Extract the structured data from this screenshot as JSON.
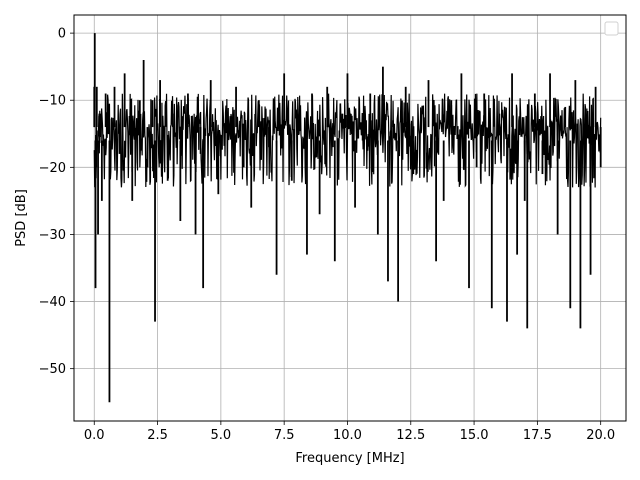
{
  "chart_data": {
    "type": "line",
    "title": "",
    "xlabel": "Frequency [MHz]",
    "ylabel": "PSD [dB]",
    "xlim": [
      -0.8,
      21.0
    ],
    "ylim": [
      -57.8,
      2.7
    ],
    "xticks": [
      0.0,
      2.5,
      5.0,
      7.5,
      10.0,
      12.5,
      15.0,
      17.5,
      20.0
    ],
    "xtick_labels": [
      "0.0",
      "2.5",
      "5.0",
      "7.5",
      "10.0",
      "12.5",
      "15.0",
      "17.5",
      "20.0"
    ],
    "yticks": [
      0,
      -10,
      -20,
      -30,
      -40,
      -50
    ],
    "ytick_labels": [
      "0",
      "−10",
      "−20",
      "−30",
      "−40",
      "−50"
    ],
    "grid": true,
    "legend": "upper-right (empty)",
    "series_color": "#000000",
    "series": [
      {
        "x": [
          0.0,
          0.02,
          0.05,
          0.08,
          0.1,
          0.15,
          0.2,
          0.3,
          0.45,
          0.55,
          0.6,
          0.8,
          1.0,
          1.2,
          1.5,
          1.8,
          1.95,
          2.1,
          2.3,
          2.4,
          2.6,
          2.9,
          3.1,
          3.4,
          3.7,
          4.0,
          4.2,
          4.3,
          4.6,
          4.9,
          5.2,
          5.6,
          5.9,
          6.2,
          6.5,
          6.9,
          7.2,
          7.5,
          7.8,
          8.1,
          8.4,
          8.6,
          8.9,
          9.2,
          9.5,
          9.8,
          10.0,
          10.3,
          10.6,
          10.9,
          11.2,
          11.4,
          11.6,
          11.8,
          12.0,
          12.3,
          12.6,
          12.9,
          13.2,
          13.5,
          13.8,
          14.1,
          14.5,
          14.8,
          15.1,
          15.4,
          15.7,
          16.0,
          16.3,
          16.5,
          16.7,
          17.0,
          17.1,
          17.4,
          17.7,
          18.0,
          18.3,
          18.6,
          18.8,
          19.0,
          19.2,
          19.4,
          19.6,
          19.8,
          20.0
        ],
        "y": [
          -8,
          0,
          -38,
          -20,
          -8,
          -30,
          -12,
          -25,
          -9,
          -15,
          -55,
          -8,
          -18,
          -6,
          -25,
          -10,
          -4,
          -20,
          -10,
          -43,
          -7,
          -22,
          -12,
          -28,
          -9,
          -30,
          -18,
          -38,
          -7,
          -24,
          -12,
          -8,
          -20,
          -26,
          -10,
          -17,
          -36,
          -6,
          -22,
          -14,
          -33,
          -9,
          -27,
          -8,
          -34,
          -12,
          -6,
          -26,
          -16,
          -9,
          -30,
          -5,
          -37,
          -13,
          -40,
          -8,
          -21,
          -12,
          -7,
          -34,
          -25,
          -10,
          -6,
          -38,
          -20,
          -9,
          -41,
          -12,
          -43,
          -6,
          -33,
          -25,
          -44,
          -9,
          -21,
          -6,
          -30,
          -11,
          -41,
          -7,
          -44,
          -12,
          -36,
          -8,
          -20
        ]
      }
    ]
  }
}
